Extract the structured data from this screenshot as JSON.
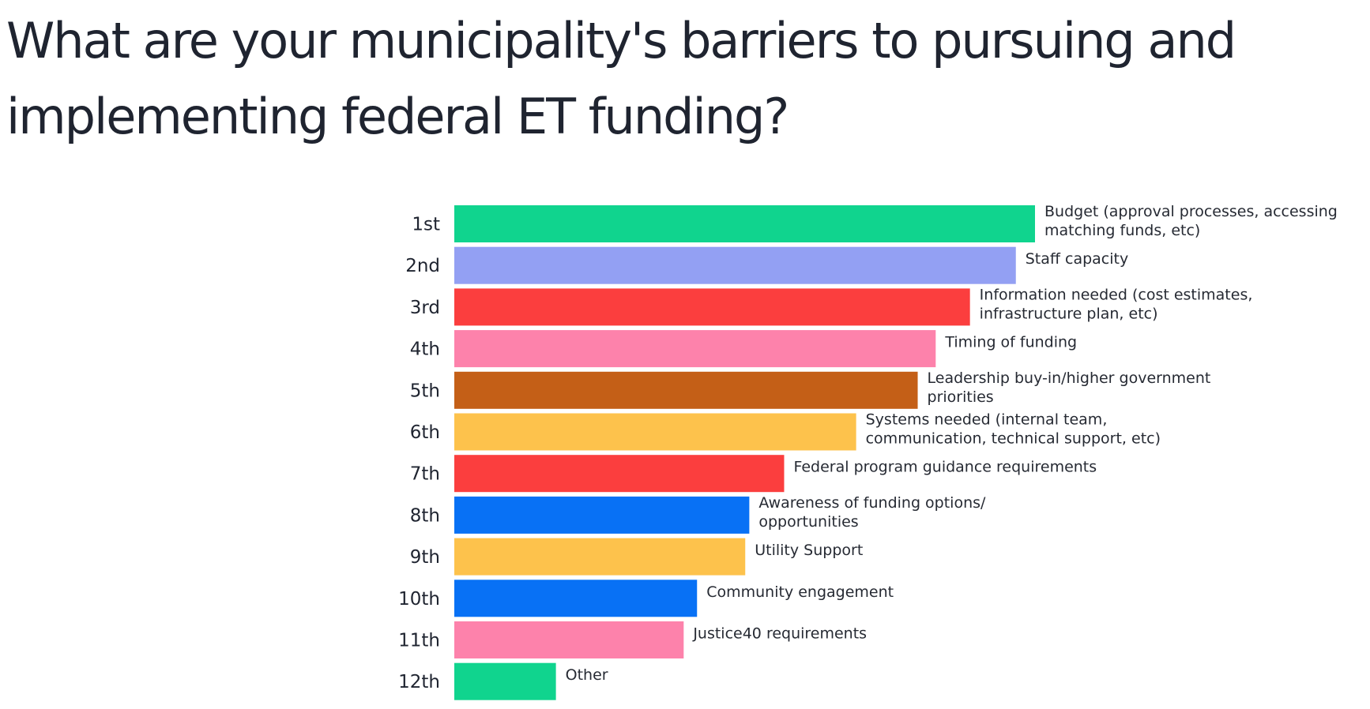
{
  "title_lines": [
    "What are your municipality's barriers to pursuing and",
    "implementing federal ET funding?"
  ],
  "chart_data": {
    "type": "bar",
    "orientation": "horizontal",
    "title": "What are your municipality's barriers to pursuing and implementing federal ET funding?",
    "xlabel": "",
    "ylabel": "",
    "grid": false,
    "legend": "none",
    "value_note": "relative bar length (scores not printed; estimated as % of the 1st-ranked bar)",
    "xlim": [
      0,
      100
    ],
    "categories": [
      "1st",
      "2nd",
      "3rd",
      "4th",
      "5th",
      "6th",
      "7th",
      "8th",
      "9th",
      "10th",
      "11th",
      "12th"
    ],
    "values": [
      100,
      96.7,
      88.8,
      82.9,
      79.8,
      69.2,
      56.8,
      50.8,
      50.1,
      41.8,
      39.5,
      17.5
    ],
    "labels": [
      [
        "Budget (approval processes, accessing",
        "matching funds, etc)"
      ],
      [
        "Staff capacity"
      ],
      [
        "Information needed (cost estimates,",
        "infrastructure plan, etc)"
      ],
      [
        "Timing of funding"
      ],
      [
        "Leadership buy-in/higher government",
        "priorities"
      ],
      [
        "Systems needed (internal team,",
        "communication, technical support, etc)"
      ],
      [
        "Federal program guidance requirements"
      ],
      [
        "Awareness of funding options/",
        "opportunities"
      ],
      [
        "Utility Support"
      ],
      [
        "Community engagement"
      ],
      [
        "Justice40 requirements"
      ],
      [
        "Other"
      ]
    ],
    "colors": [
      "#10d48e",
      "#93a0f3",
      "#fb3e3e",
      "#fd82ab",
      "#c45f17",
      "#fdc24c",
      "#fb3e3e",
      "#0871f5",
      "#fdc24c",
      "#0871f5",
      "#fd82ab",
      "#10d48e"
    ]
  }
}
